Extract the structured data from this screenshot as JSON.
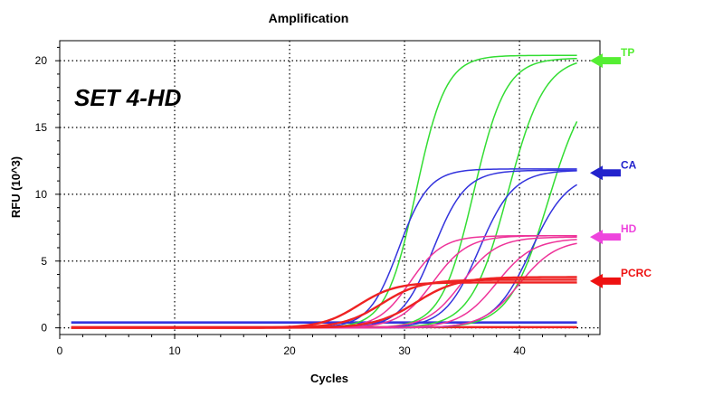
{
  "chart_data": {
    "type": "line",
    "title": "Amplification",
    "xlabel": "Cycles",
    "ylabel": "RFU (10^3)",
    "annotation": "SET 4-HD",
    "xlim": [
      0,
      47
    ],
    "ylim": [
      -0.5,
      21.5
    ],
    "x_ticks": [
      0,
      10,
      20,
      30,
      40
    ],
    "y_ticks": [
      0,
      5,
      10,
      15,
      20
    ],
    "grid": true,
    "x_range": [
      1,
      45
    ],
    "groups": [
      {
        "label": "TP",
        "color": "#33dd33",
        "curves": [
          {
            "plateau": 20.4,
            "mid": 31.0,
            "slope": 1.3
          },
          {
            "plateau": 20.2,
            "mid": 36.0,
            "slope": 1.4
          },
          {
            "plateau": 20.3,
            "mid": 39.0,
            "slope": 1.6
          },
          {
            "plateau": 19.0,
            "mid": 42.5,
            "slope": 1.7
          }
        ]
      },
      {
        "label": "CA",
        "color": "#3333dd",
        "curves": [
          {
            "plateau": 11.9,
            "mid": 29.5,
            "slope": 1.3
          },
          {
            "plateau": 11.8,
            "mid": 32.5,
            "slope": 1.4
          },
          {
            "plateau": 11.8,
            "mid": 36.5,
            "slope": 1.5
          },
          {
            "plateau": 11.6,
            "mid": 41.0,
            "slope": 1.6
          }
        ]
      },
      {
        "label": "HD",
        "color": "#ee3399",
        "curves": [
          {
            "plateau": 6.9,
            "mid": 30.5,
            "slope": 1.4
          },
          {
            "plateau": 6.9,
            "mid": 32.5,
            "slope": 1.5
          },
          {
            "plateau": 6.8,
            "mid": 35.0,
            "slope": 1.5
          },
          {
            "plateau": 6.7,
            "mid": 38.0,
            "slope": 1.6
          },
          {
            "plateau": 6.6,
            "mid": 40.0,
            "slope": 1.6
          }
        ]
      },
      {
        "label": "PCRC",
        "color": "#ee2222",
        "curves": [
          {
            "plateau": 3.4,
            "mid": 26.0,
            "slope": 1.6
          },
          {
            "plateau": 3.6,
            "mid": 28.0,
            "slope": 1.7
          },
          {
            "plateau": 3.8,
            "mid": 31.0,
            "slope": 1.8
          }
        ]
      }
    ],
    "baselines": [
      {
        "color": "#3333dd",
        "value": 0.4
      },
      {
        "color": "#ee2222",
        "value": 0.05
      }
    ],
    "markers": [
      {
        "label": "TP",
        "y": 20.0,
        "color": "#55ee33"
      },
      {
        "label": "CA",
        "y": 11.6,
        "color": "#2222cc"
      },
      {
        "label": "HD",
        "y": 6.8,
        "color": "#ee44dd"
      },
      {
        "label": "PCRC",
        "y": 3.5,
        "color": "#ee1111"
      }
    ]
  }
}
